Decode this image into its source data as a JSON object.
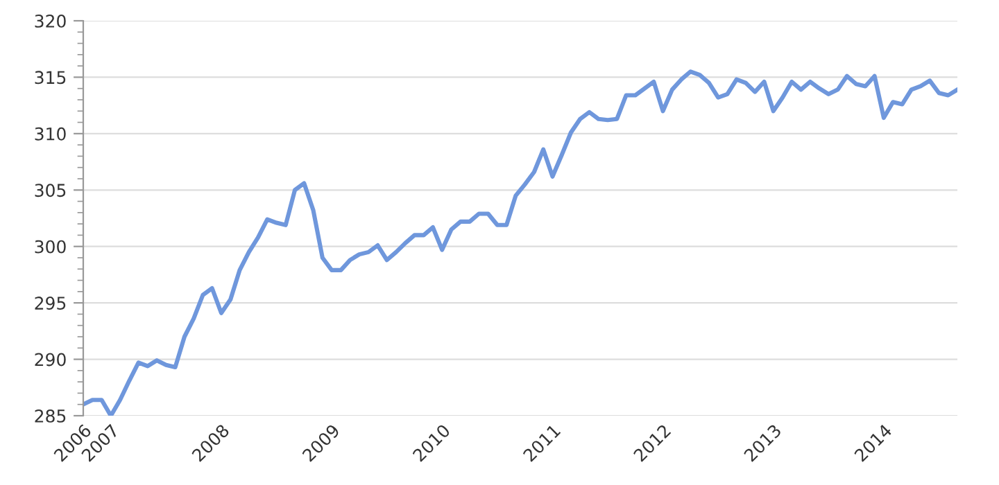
{
  "chart_data": {
    "type": "line",
    "x": [
      "2006-10",
      "2006-11",
      "2006-12",
      "2007-01",
      "2007-02",
      "2007-03",
      "2007-04",
      "2007-05",
      "2007-06",
      "2007-07",
      "2007-08",
      "2007-09",
      "2007-10",
      "2007-11",
      "2007-12",
      "2008-01",
      "2008-02",
      "2008-03",
      "2008-04",
      "2008-05",
      "2008-06",
      "2008-07",
      "2008-08",
      "2008-09",
      "2008-10",
      "2008-11",
      "2008-12",
      "2009-01",
      "2009-02",
      "2009-03",
      "2009-04",
      "2009-05",
      "2009-06",
      "2009-07",
      "2009-08",
      "2009-09",
      "2009-10",
      "2009-11",
      "2009-12",
      "2010-01",
      "2010-02",
      "2010-03",
      "2010-04",
      "2010-05",
      "2010-06",
      "2010-07",
      "2010-08",
      "2010-09",
      "2010-10",
      "2010-11",
      "2010-12",
      "2011-01",
      "2011-02",
      "2011-03",
      "2011-04",
      "2011-05",
      "2011-06",
      "2011-07",
      "2011-08",
      "2011-09",
      "2011-10",
      "2011-11",
      "2011-12",
      "2012-01",
      "2012-02",
      "2012-03",
      "2012-04",
      "2012-05",
      "2012-06",
      "2012-07",
      "2012-08",
      "2012-09",
      "2012-10",
      "2012-11",
      "2012-12",
      "2013-01",
      "2013-02",
      "2013-03",
      "2013-04",
      "2013-05",
      "2013-06",
      "2013-07",
      "2013-08",
      "2013-09",
      "2013-10",
      "2013-11",
      "2013-12",
      "2014-01",
      "2014-02",
      "2014-03",
      "2014-04",
      "2014-05",
      "2014-06",
      "2014-07",
      "2014-08",
      "2014-09"
    ],
    "series": [
      {
        "color": "#6f97dc",
        "values": [
          286.0,
          286.4,
          286.4,
          285.0,
          286.4,
          288.1,
          289.7,
          289.4,
          289.9,
          289.5,
          289.3,
          292.0,
          293.6,
          295.7,
          296.3,
          294.1,
          295.3,
          297.9,
          299.5,
          300.8,
          302.4,
          302.1,
          301.9,
          305.0,
          305.6,
          303.2,
          299.0,
          297.9,
          297.9,
          298.8,
          299.3,
          299.5,
          300.1,
          298.8,
          299.5,
          300.3,
          301.0,
          301.0,
          301.7,
          299.7,
          301.5,
          302.2,
          302.2,
          302.9,
          302.9,
          301.9,
          301.9,
          304.5,
          305.5,
          306.6,
          308.6,
          306.2,
          308.1,
          310.1,
          311.3,
          311.9,
          311.3,
          311.2,
          311.3,
          313.4,
          313.4,
          314.0,
          314.6,
          312.0,
          313.9,
          314.8,
          315.5,
          315.2,
          314.5,
          313.2,
          313.5,
          314.8,
          314.5,
          313.7,
          314.6,
          312.0,
          313.2,
          314.6,
          313.9,
          314.6,
          314.0,
          313.5,
          313.9,
          315.1,
          314.4,
          314.2,
          315.1,
          311.4,
          312.8,
          312.6,
          313.9,
          314.2,
          314.7,
          313.6,
          313.4,
          313.9
        ]
      }
    ],
    "xlim": [
      "2006-10",
      "2014-09"
    ],
    "xticks": [
      {
        "value": "2006-10",
        "label": "2006"
      },
      {
        "value": "2007-01",
        "label": "2007"
      },
      {
        "value": "2008-01",
        "label": "2008"
      },
      {
        "value": "2009-01",
        "label": "2009"
      },
      {
        "value": "2010-01",
        "label": "2010"
      },
      {
        "value": "2011-01",
        "label": "2011"
      },
      {
        "value": "2012-01",
        "label": "2012"
      },
      {
        "value": "2013-01",
        "label": "2013"
      },
      {
        "value": "2014-01",
        "label": "2014"
      }
    ],
    "ylim": [
      285,
      320
    ],
    "yticks": [
      285,
      290,
      295,
      300,
      305,
      310,
      315,
      320
    ],
    "grid": "y",
    "marker": "none",
    "line_style": "solid",
    "legend": false
  }
}
